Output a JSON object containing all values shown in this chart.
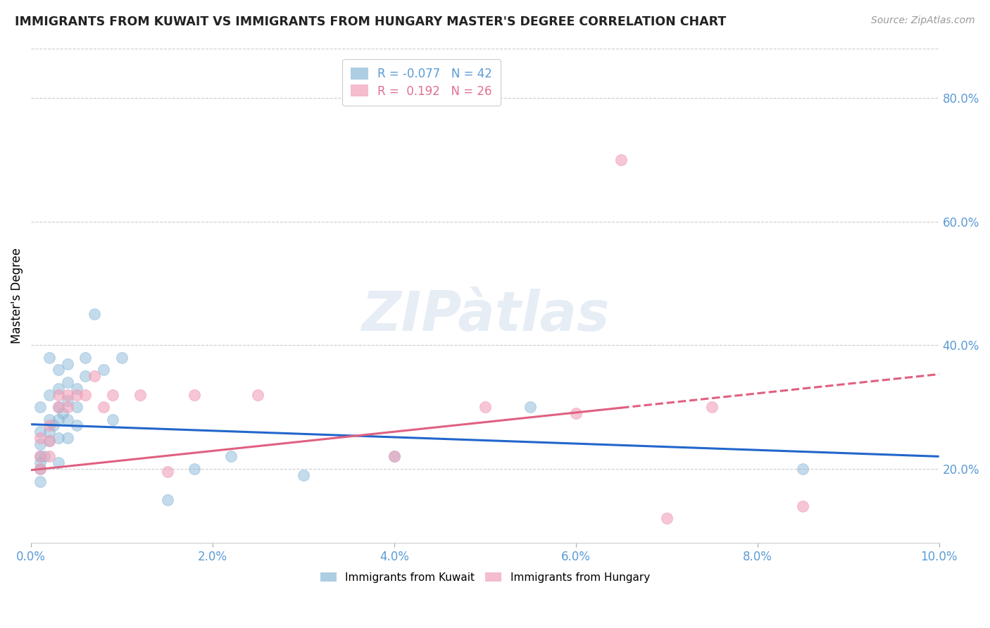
{
  "title": "IMMIGRANTS FROM KUWAIT VS IMMIGRANTS FROM HUNGARY MASTER'S DEGREE CORRELATION CHART",
  "source": "Source: ZipAtlas.com",
  "ylabel": "Master's Degree",
  "xlim": [
    0.0,
    0.1
  ],
  "ylim": [
    0.08,
    0.88
  ],
  "xticks": [
    0.0,
    0.02,
    0.04,
    0.06,
    0.08,
    0.1
  ],
  "yticks": [
    0.2,
    0.4,
    0.6,
    0.8
  ],
  "xticklabels": [
    "0.0%",
    "2.0%",
    "4.0%",
    "6.0%",
    "8.0%",
    "10.0%"
  ],
  "yticklabels": [
    "20.0%",
    "40.0%",
    "60.0%",
    "80.0%"
  ],
  "kuwait_R": -0.077,
  "kuwait_N": 42,
  "hungary_R": 0.192,
  "hungary_N": 26,
  "kuwait_color": "#8ab8d8",
  "hungary_color": "#f0a0b8",
  "kuwait_line_color": "#2266cc",
  "hungary_line_color": "#e06080",
  "kuwait_line_y0": 0.272,
  "kuwait_line_slope": -0.52,
  "hungary_line_y0": 0.198,
  "hungary_line_slope": 1.55,
  "kuwait_x": [
    0.001,
    0.001,
    0.001,
    0.001,
    0.001,
    0.001,
    0.0015,
    0.002,
    0.002,
    0.002,
    0.002,
    0.002,
    0.0025,
    0.003,
    0.003,
    0.003,
    0.003,
    0.003,
    0.003,
    0.0035,
    0.004,
    0.004,
    0.004,
    0.004,
    0.004,
    0.005,
    0.005,
    0.005,
    0.006,
    0.006,
    0.007,
    0.008,
    0.009,
    0.01,
    0.015,
    0.018,
    0.022,
    0.03,
    0.04,
    0.055,
    0.085,
    0.001
  ],
  "kuwait_y": [
    0.2,
    0.21,
    0.22,
    0.24,
    0.26,
    0.3,
    0.22,
    0.245,
    0.26,
    0.28,
    0.32,
    0.38,
    0.27,
    0.21,
    0.25,
    0.28,
    0.3,
    0.33,
    0.36,
    0.29,
    0.25,
    0.28,
    0.31,
    0.34,
    0.37,
    0.27,
    0.3,
    0.33,
    0.35,
    0.38,
    0.45,
    0.36,
    0.28,
    0.38,
    0.15,
    0.2,
    0.22,
    0.19,
    0.22,
    0.3,
    0.2,
    0.18
  ],
  "hungary_x": [
    0.001,
    0.001,
    0.001,
    0.002,
    0.002,
    0.002,
    0.003,
    0.003,
    0.004,
    0.004,
    0.005,
    0.006,
    0.007,
    0.008,
    0.009,
    0.012,
    0.015,
    0.018,
    0.025,
    0.04,
    0.05,
    0.06,
    0.065,
    0.07,
    0.075,
    0.085
  ],
  "hungary_y": [
    0.2,
    0.22,
    0.25,
    0.22,
    0.245,
    0.27,
    0.3,
    0.32,
    0.3,
    0.32,
    0.32,
    0.32,
    0.35,
    0.3,
    0.32,
    0.32,
    0.195,
    0.32,
    0.32,
    0.22,
    0.3,
    0.29,
    0.7,
    0.12,
    0.3,
    0.14
  ]
}
